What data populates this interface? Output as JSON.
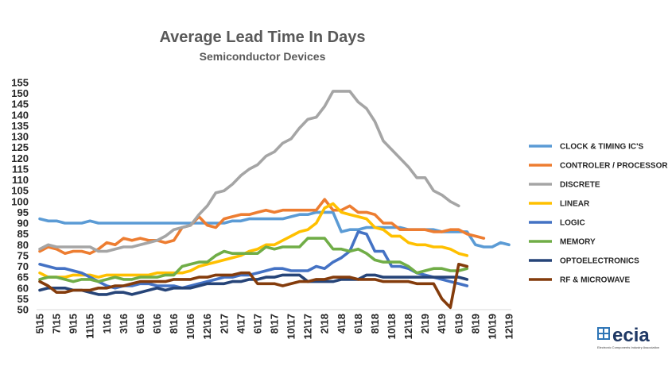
{
  "chart_data": {
    "type": "line",
    "title": "Average Lead Time In Days",
    "subtitle": "Semiconductor Devices",
    "xlabel": "",
    "ylabel": "",
    "ylim": [
      50,
      155
    ],
    "yticks": [
      50,
      55,
      60,
      65,
      70,
      75,
      80,
      85,
      90,
      95,
      100,
      105,
      110,
      115,
      120,
      125,
      130,
      135,
      140,
      145,
      150,
      155
    ],
    "grid": false,
    "legend_position": "right",
    "x_tick_labels": [
      "5\\15",
      "7\\15",
      "9\\15",
      "11\\15",
      "1\\16",
      "3\\16",
      "6\\16",
      "6\\16",
      "8\\16",
      "10\\16",
      "12\\16",
      "2\\17",
      "4\\17",
      "6\\17",
      "8\\17",
      "10\\17",
      "12\\17",
      "2\\18",
      "4\\18",
      "6\\18",
      "8\\18",
      "10\\18",
      "12\\18",
      "2\\19",
      "4\\19",
      "6\\19",
      "8\\19",
      "10\\19",
      "12\\19"
    ],
    "x_tick_positions": [
      0,
      2,
      4,
      6,
      8,
      10,
      12,
      14,
      16,
      18,
      20,
      22,
      24,
      26,
      28,
      30,
      32,
      34,
      36,
      38,
      40,
      42,
      44,
      46,
      48,
      50,
      52,
      54,
      56
    ],
    "x_count": 57,
    "series": [
      {
        "name": "CLOCK & TIMING IC'S",
        "color": "#5b9bd5",
        "values": [
          92,
          91,
          91,
          90,
          90,
          90,
          91,
          90,
          90,
          90,
          90,
          90,
          90,
          90,
          90,
          90,
          90,
          90,
          90,
          90,
          90,
          90,
          90,
          91,
          91,
          92,
          92,
          92,
          92,
          92,
          93,
          94,
          94,
          95,
          95,
          95,
          86,
          87,
          87,
          88,
          88,
          88,
          88,
          88,
          87,
          87,
          87,
          87,
          86,
          86,
          86,
          86,
          80,
          79,
          79,
          81,
          80
        ]
      },
      {
        "name": "CONTROLER / PROCESSOR",
        "color": "#ed7d31",
        "values": [
          77,
          79,
          78,
          76,
          77,
          77,
          76,
          78,
          81,
          80,
          83,
          82,
          83,
          82,
          82,
          81,
          82,
          88,
          89,
          93,
          89,
          88,
          92,
          93,
          94,
          94,
          95,
          96,
          95,
          96,
          96,
          96,
          96,
          96,
          101,
          96,
          96,
          98,
          95,
          95,
          94,
          90,
          90,
          87,
          87,
          87,
          87,
          86,
          86,
          87,
          87,
          85,
          84,
          83
        ]
      },
      {
        "name": "DISCRETE",
        "color": "#a5a5a5",
        "values": [
          78,
          80,
          79,
          79,
          79,
          79,
          79,
          77,
          77,
          78,
          79,
          79,
          80,
          81,
          82,
          84,
          87,
          88,
          89,
          94,
          98,
          104,
          105,
          108,
          112,
          115,
          117,
          121,
          123,
          127,
          129,
          134,
          138,
          139,
          144,
          151,
          151,
          151,
          146,
          143,
          137,
          128,
          124,
          120,
          116,
          111,
          111,
          105,
          103,
          100,
          98
        ]
      },
      {
        "name": "LINEAR",
        "color": "#ffc000",
        "values": [
          67,
          65,
          65,
          65,
          66,
          66,
          66,
          65,
          66,
          66,
          66,
          66,
          66,
          66,
          67,
          67,
          67,
          67,
          68,
          70,
          71,
          72,
          73,
          74,
          75,
          77,
          78,
          80,
          80,
          82,
          84,
          86,
          87,
          90,
          97,
          99,
          95,
          94,
          93,
          92,
          88,
          87,
          84,
          84,
          81,
          80,
          80,
          79,
          79,
          78,
          76,
          75
        ]
      },
      {
        "name": "LOGIC",
        "color": "#4472c4",
        "values": [
          71,
          70,
          69,
          69,
          68,
          67,
          65,
          63,
          61,
          60,
          61,
          61,
          62,
          62,
          61,
          61,
          61,
          60,
          61,
          62,
          63,
          64,
          65,
          65,
          66,
          66,
          67,
          68,
          69,
          69,
          68,
          68,
          68,
          70,
          69,
          72,
          74,
          77,
          86,
          85,
          77,
          77,
          70,
          70,
          69,
          67,
          66,
          65,
          64,
          63,
          62,
          61
        ]
      },
      {
        "name": "MEMORY",
        "color": "#70ad47",
        "values": [
          64,
          65,
          65,
          64,
          63,
          64,
          64,
          63,
          64,
          65,
          64,
          64,
          65,
          65,
          65,
          66,
          66,
          70,
          71,
          72,
          72,
          75,
          77,
          76,
          76,
          76,
          76,
          79,
          78,
          79,
          79,
          79,
          83,
          83,
          83,
          78,
          78,
          77,
          78,
          76,
          73,
          72,
          72,
          72,
          70,
          67,
          68,
          69,
          69,
          68,
          68,
          69
        ]
      },
      {
        "name": "OPTOELECTRONICS",
        "color": "#264478",
        "values": [
          59,
          60,
          60,
          60,
          59,
          59,
          58,
          57,
          57,
          58,
          58,
          57,
          58,
          59,
          60,
          59,
          60,
          60,
          60,
          61,
          62,
          62,
          62,
          63,
          63,
          64,
          64,
          65,
          65,
          66,
          66,
          66,
          63,
          63,
          63,
          63,
          64,
          64,
          64,
          66,
          66,
          65,
          65,
          65,
          65,
          65,
          65,
          65,
          65,
          65,
          65,
          64
        ]
      },
      {
        "name": "RF & MICROWAVE",
        "color": "#843c0c",
        "values": [
          63,
          61,
          58,
          58,
          59,
          59,
          59,
          60,
          60,
          61,
          61,
          62,
          63,
          63,
          63,
          63,
          64,
          64,
          64,
          65,
          65,
          66,
          66,
          66,
          67,
          67,
          62,
          62,
          62,
          61,
          62,
          63,
          63,
          64,
          64,
          65,
          65,
          65,
          64,
          64,
          64,
          63,
          63,
          63,
          63,
          62,
          62,
          62,
          55,
          51,
          71,
          70
        ]
      }
    ]
  },
  "logo": {
    "name": "ecia",
    "tagline": "Electronic Components Industry Association"
  }
}
